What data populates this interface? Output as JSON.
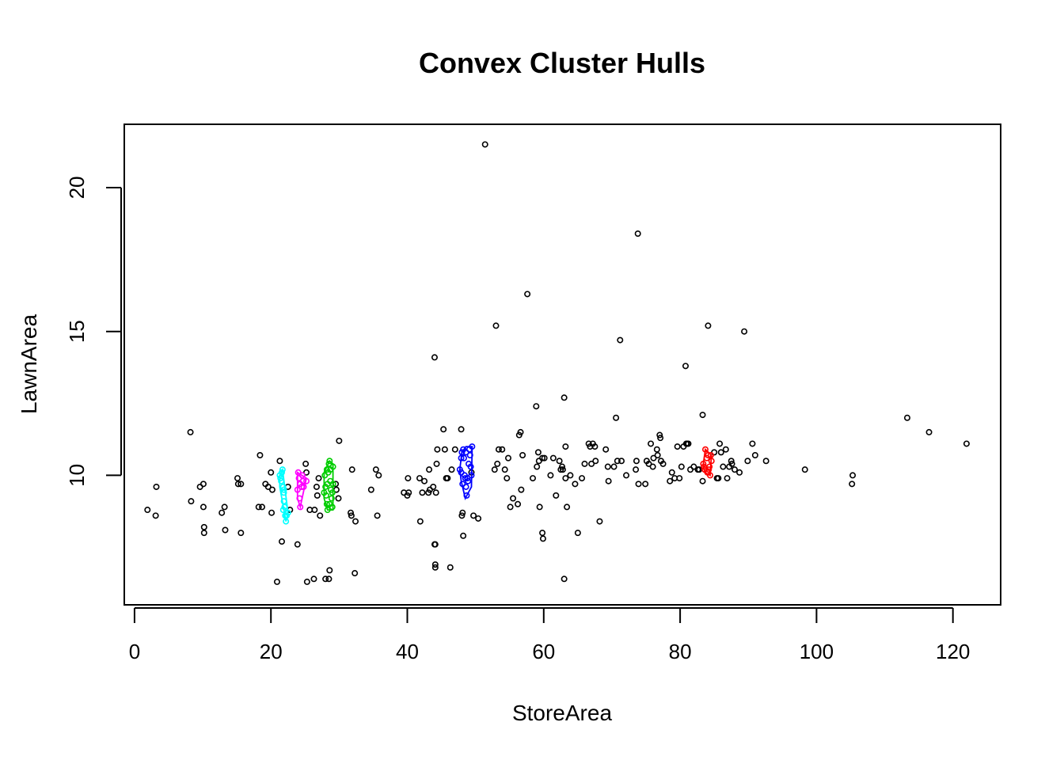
{
  "chart_data": {
    "type": "scatter",
    "title": "Convex Cluster Hulls",
    "xlabel": "StoreArea",
    "ylabel": "LawnArea",
    "xlim": [
      -1.5,
      127
    ],
    "ylim": [
      5.5,
      22.2
    ],
    "xticks": [
      0,
      20,
      40,
      60,
      80,
      100,
      120
    ],
    "yticks": [
      10,
      15,
      20
    ],
    "grid": false,
    "legend": "none",
    "point_color": "#000000",
    "points": [
      [
        1.9,
        8.8
      ],
      [
        3.1,
        8.6
      ],
      [
        3.2,
        9.6
      ],
      [
        8.2,
        11.5
      ],
      [
        8.3,
        9.1
      ],
      [
        9.6,
        9.6
      ],
      [
        10.1,
        9.7
      ],
      [
        10.1,
        8.9
      ],
      [
        10.2,
        8.2
      ],
      [
        10.2,
        8.0
      ],
      [
        12.8,
        8.7
      ],
      [
        13.2,
        8.9
      ],
      [
        13.3,
        8.1
      ],
      [
        15.1,
        9.9
      ],
      [
        15.2,
        9.7
      ],
      [
        15.6,
        9.7
      ],
      [
        15.6,
        8.0
      ],
      [
        18.2,
        8.9
      ],
      [
        18.4,
        10.7
      ],
      [
        18.7,
        8.9
      ],
      [
        19.2,
        9.7
      ],
      [
        19.6,
        9.6
      ],
      [
        20.0,
        10.1
      ],
      [
        20.1,
        8.7
      ],
      [
        20.2,
        9.5
      ],
      [
        20.9,
        6.3
      ],
      [
        21.3,
        10.5
      ],
      [
        21.6,
        7.7
      ],
      [
        22.5,
        9.6
      ],
      [
        22.8,
        8.8
      ],
      [
        23.9,
        7.6
      ],
      [
        25.1,
        10.4
      ],
      [
        25.2,
        10.1
      ],
      [
        25.3,
        6.3
      ],
      [
        25.7,
        8.8
      ],
      [
        26.3,
        6.4
      ],
      [
        26.4,
        8.8
      ],
      [
        26.7,
        9.6
      ],
      [
        26.8,
        9.3
      ],
      [
        27.0,
        9.9
      ],
      [
        27.2,
        8.6
      ],
      [
        28.0,
        6.4
      ],
      [
        28.5,
        6.4
      ],
      [
        28.6,
        6.7
      ],
      [
        29.5,
        9.7
      ],
      [
        29.6,
        9.5
      ],
      [
        29.9,
        9.2
      ],
      [
        30.0,
        11.2
      ],
      [
        31.7,
        8.7
      ],
      [
        31.8,
        8.6
      ],
      [
        31.9,
        10.2
      ],
      [
        32.3,
        6.6
      ],
      [
        32.4,
        8.4
      ],
      [
        34.7,
        9.5
      ],
      [
        35.4,
        10.2
      ],
      [
        35.6,
        8.6
      ],
      [
        35.8,
        10.0
      ],
      [
        39.5,
        9.4
      ],
      [
        40.0,
        9.3
      ],
      [
        40.1,
        9.9
      ],
      [
        40.2,
        9.4
      ],
      [
        41.8,
        9.9
      ],
      [
        41.9,
        8.4
      ],
      [
        42.2,
        9.4
      ],
      [
        42.5,
        9.8
      ],
      [
        43.1,
        9.4
      ],
      [
        43.2,
        10.2
      ],
      [
        43.3,
        9.5
      ],
      [
        43.8,
        9.6
      ],
      [
        44.0,
        14.1
      ],
      [
        44.0,
        7.6
      ],
      [
        44.1,
        7.6
      ],
      [
        44.1,
        6.9
      ],
      [
        44.1,
        6.8
      ],
      [
        44.2,
        9.4
      ],
      [
        44.3,
        10.4
      ],
      [
        44.4,
        10.9
      ],
      [
        45.3,
        11.6
      ],
      [
        45.5,
        10.9
      ],
      [
        45.7,
        9.9
      ],
      [
        45.9,
        9.9
      ],
      [
        46.3,
        6.8
      ],
      [
        46.5,
        10.2
      ],
      [
        47.0,
        10.9
      ],
      [
        47.9,
        11.6
      ],
      [
        48.0,
        8.6
      ],
      [
        48.1,
        8.7
      ],
      [
        48.2,
        7.9
      ],
      [
        49.4,
        10.1
      ],
      [
        49.7,
        8.6
      ],
      [
        50.4,
        8.5
      ],
      [
        51.4,
        21.5
      ],
      [
        52.8,
        10.2
      ],
      [
        53.0,
        15.2
      ],
      [
        53.2,
        10.4
      ],
      [
        53.4,
        10.9
      ],
      [
        53.9,
        10.9
      ],
      [
        54.3,
        10.2
      ],
      [
        54.6,
        9.9
      ],
      [
        54.8,
        10.6
      ],
      [
        55.1,
        8.9
      ],
      [
        55.5,
        9.2
      ],
      [
        56.2,
        9.0
      ],
      [
        56.4,
        11.4
      ],
      [
        56.6,
        11.5
      ],
      [
        56.7,
        9.5
      ],
      [
        56.9,
        10.7
      ],
      [
        57.6,
        16.3
      ],
      [
        58.4,
        9.9
      ],
      [
        58.9,
        12.4
      ],
      [
        59.0,
        10.3
      ],
      [
        59.2,
        10.8
      ],
      [
        59.3,
        10.5
      ],
      [
        59.4,
        8.9
      ],
      [
        59.8,
        10.6
      ],
      [
        60.1,
        10.6
      ],
      [
        59.8,
        8.0
      ],
      [
        59.9,
        7.8
      ],
      [
        61.0,
        10.0
      ],
      [
        61.4,
        10.6
      ],
      [
        61.8,
        9.3
      ],
      [
        62.3,
        10.5
      ],
      [
        62.5,
        10.2
      ],
      [
        62.7,
        10.3
      ],
      [
        62.8,
        10.2
      ],
      [
        63.0,
        12.7
      ],
      [
        63.2,
        11.0
      ],
      [
        63.2,
        9.9
      ],
      [
        63.4,
        8.9
      ],
      [
        63.0,
        6.4
      ],
      [
        63.9,
        10.0
      ],
      [
        64.6,
        9.7
      ],
      [
        65.0,
        8.0
      ],
      [
        65.6,
        9.9
      ],
      [
        66.0,
        10.4
      ],
      [
        66.6,
        11.1
      ],
      [
        66.8,
        11.0
      ],
      [
        67.0,
        10.4
      ],
      [
        67.2,
        11.1
      ],
      [
        67.5,
        11.0
      ],
      [
        67.6,
        10.5
      ],
      [
        68.2,
        8.4
      ],
      [
        69.1,
        10.9
      ],
      [
        69.4,
        10.3
      ],
      [
        69.5,
        9.8
      ],
      [
        70.3,
        10.3
      ],
      [
        70.6,
        12.0
      ],
      [
        70.8,
        10.5
      ],
      [
        71.2,
        14.7
      ],
      [
        71.4,
        10.5
      ],
      [
        72.1,
        10.0
      ],
      [
        73.5,
        10.2
      ],
      [
        73.6,
        10.5
      ],
      [
        73.8,
        18.4
      ],
      [
        73.9,
        9.7
      ],
      [
        74.9,
        9.7
      ],
      [
        75.1,
        10.5
      ],
      [
        75.4,
        10.4
      ],
      [
        75.7,
        11.1
      ],
      [
        76.0,
        10.3
      ],
      [
        76.1,
        10.6
      ],
      [
        76.6,
        10.9
      ],
      [
        76.7,
        10.7
      ],
      [
        77.0,
        11.4
      ],
      [
        77.1,
        11.3
      ],
      [
        77.2,
        10.5
      ],
      [
        77.5,
        10.4
      ],
      [
        78.5,
        9.8
      ],
      [
        78.8,
        10.1
      ],
      [
        79.2,
        9.9
      ],
      [
        79.6,
        11.0
      ],
      [
        79.9,
        9.9
      ],
      [
        80.2,
        10.3
      ],
      [
        80.5,
        11.0
      ],
      [
        80.8,
        13.8
      ],
      [
        80.9,
        11.1
      ],
      [
        81.0,
        11.1
      ],
      [
        81.2,
        11.1
      ],
      [
        81.5,
        10.2
      ],
      [
        82.0,
        10.3
      ],
      [
        82.6,
        10.2
      ],
      [
        82.8,
        10.2
      ],
      [
        83.3,
        9.8
      ],
      [
        83.3,
        12.1
      ],
      [
        84.1,
        15.2
      ],
      [
        85.0,
        10.8
      ],
      [
        85.4,
        9.9
      ],
      [
        85.6,
        9.9
      ],
      [
        85.8,
        11.1
      ],
      [
        86.0,
        10.8
      ],
      [
        86.3,
        10.3
      ],
      [
        86.7,
        10.9
      ],
      [
        86.9,
        9.9
      ],
      [
        87.2,
        10.3
      ],
      [
        87.5,
        10.5
      ],
      [
        87.6,
        10.4
      ],
      [
        88.0,
        10.2
      ],
      [
        88.7,
        10.1
      ],
      [
        89.4,
        15.0
      ],
      [
        89.9,
        10.5
      ],
      [
        90.6,
        11.1
      ],
      [
        91.0,
        10.7
      ],
      [
        92.6,
        10.5
      ],
      [
        98.3,
        10.2
      ],
      [
        105.2,
        9.7
      ],
      [
        105.3,
        10.0
      ],
      [
        113.3,
        12.0
      ],
      [
        116.5,
        11.5
      ],
      [
        122.0,
        11.1
      ]
    ],
    "clusters": [
      {
        "color": "#00FFFF",
        "points": [
          [
            21.3,
            10.0
          ],
          [
            21.5,
            9.8
          ],
          [
            21.6,
            10.1
          ],
          [
            21.7,
            10.2
          ],
          [
            21.8,
            9.6
          ],
          [
            21.9,
            9.4
          ],
          [
            21.9,
            9.1
          ],
          [
            22.0,
            8.9
          ],
          [
            22.1,
            8.6
          ],
          [
            22.2,
            8.4
          ],
          [
            21.8,
            8.8
          ],
          [
            22.5,
            8.7
          ],
          [
            22.3,
            8.6
          ],
          [
            21.9,
            9.5
          ],
          [
            21.4,
            9.9
          ]
        ],
        "hull": [
          [
            21.3,
            10.0
          ],
          [
            21.7,
            10.2
          ],
          [
            22.5,
            8.7
          ],
          [
            22.2,
            8.4
          ],
          [
            21.3,
            9.6
          ]
        ]
      },
      {
        "color": "#FF00FF",
        "points": [
          [
            24.0,
            10.1
          ],
          [
            24.1,
            9.9
          ],
          [
            24.3,
            9.7
          ],
          [
            24.6,
            10.0
          ],
          [
            24.8,
            9.6
          ],
          [
            25.2,
            9.8
          ],
          [
            24.2,
            9.2
          ],
          [
            24.3,
            8.9
          ],
          [
            24.5,
            9.6
          ],
          [
            23.9,
            9.5
          ],
          [
            24.7,
            9.8
          ]
        ],
        "hull": [
          [
            23.9,
            10.1
          ],
          [
            25.2,
            9.9
          ],
          [
            24.3,
            8.9
          ],
          [
            23.9,
            9.2
          ]
        ]
      },
      {
        "color": "#00CD00",
        "points": [
          [
            27.9,
            10.0
          ],
          [
            28.0,
            9.6
          ],
          [
            28.1,
            9.3
          ],
          [
            28.2,
            9.0
          ],
          [
            28.3,
            8.8
          ],
          [
            28.4,
            10.1
          ],
          [
            28.5,
            10.4
          ],
          [
            28.6,
            10.5
          ],
          [
            28.7,
            9.8
          ],
          [
            28.8,
            9.5
          ],
          [
            28.9,
            9.2
          ],
          [
            29.0,
            8.9
          ],
          [
            29.1,
            10.3
          ],
          [
            29.1,
            9.7
          ],
          [
            28.6,
            9.0
          ],
          [
            28.3,
            9.7
          ],
          [
            28.7,
            10.2
          ],
          [
            27.8,
            9.4
          ],
          [
            29.0,
            9.4
          ],
          [
            28.2,
            10.2
          ]
        ],
        "hull": [
          [
            27.8,
            10.1
          ],
          [
            28.6,
            10.5
          ],
          [
            29.1,
            10.4
          ],
          [
            29.1,
            8.8
          ],
          [
            28.3,
            8.8
          ],
          [
            27.8,
            9.2
          ]
        ]
      },
      {
        "color": "#0000FF",
        "points": [
          [
            47.7,
            10.2
          ],
          [
            47.9,
            10.6
          ],
          [
            48.0,
            10.8
          ],
          [
            48.2,
            10.9
          ],
          [
            48.3,
            10.6
          ],
          [
            48.5,
            9.9
          ],
          [
            48.6,
            9.6
          ],
          [
            48.7,
            9.3
          ],
          [
            48.9,
            9.8
          ],
          [
            49.0,
            10.4
          ],
          [
            49.1,
            10.9
          ],
          [
            49.2,
            10.7
          ],
          [
            49.3,
            10.3
          ],
          [
            49.4,
            10.0
          ],
          [
            49.5,
            11.0
          ],
          [
            48.4,
            10.0
          ],
          [
            48.1,
            9.7
          ],
          [
            48.8,
            9.9
          ],
          [
            47.9,
            10.1
          ],
          [
            48.6,
            10.8
          ]
        ],
        "hull": [
          [
            47.7,
            10.2
          ],
          [
            48.0,
            10.8
          ],
          [
            48.6,
            11.0
          ],
          [
            49.5,
            11.0
          ],
          [
            49.4,
            9.6
          ],
          [
            48.5,
            9.2
          ],
          [
            47.9,
            9.8
          ]
        ]
      },
      {
        "color": "#FF0000",
        "points": [
          [
            83.4,
            10.4
          ],
          [
            83.6,
            10.2
          ],
          [
            83.7,
            10.9
          ],
          [
            83.9,
            10.6
          ],
          [
            84.0,
            10.1
          ],
          [
            84.1,
            10.7
          ],
          [
            84.3,
            10.3
          ],
          [
            84.4,
            10.0
          ],
          [
            84.5,
            10.7
          ],
          [
            84.6,
            10.5
          ],
          [
            83.5,
            10.3
          ],
          [
            84.2,
            10.2
          ]
        ],
        "hull": [
          [
            83.4,
            10.4
          ],
          [
            83.7,
            10.9
          ],
          [
            84.6,
            10.7
          ],
          [
            84.4,
            10.0
          ],
          [
            83.6,
            10.1
          ]
        ]
      }
    ]
  }
}
